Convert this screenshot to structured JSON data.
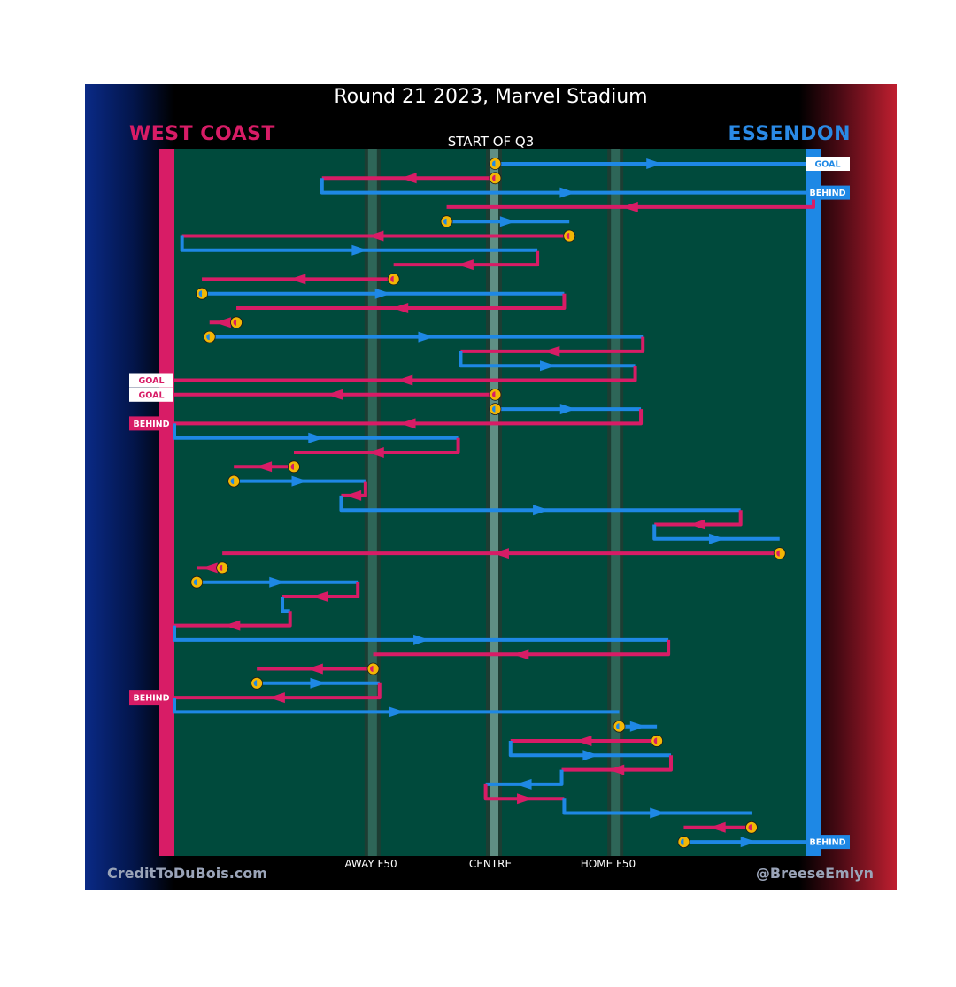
{
  "header": {
    "title": "Round 21 2023, Marvel Stadium",
    "team_left": "WEST COAST",
    "team_right": "ESSENDON",
    "subtitle": "START OF Q3"
  },
  "footer": {
    "credit_left": "CreditToDuBois.com",
    "credit_right": "@BreeseEmlyn"
  },
  "colors": {
    "west_coast": "#d81c66",
    "essendon": "#1e88e5",
    "field": "#004a3c",
    "turnover_marker": "#f2b705"
  },
  "chart_data": {
    "type": "line",
    "title": "Round 21 2023, Marvel Stadium",
    "subtitle": "START OF Q3",
    "description": "Ball movement chains in Q3; x = ground position from West Coast goal (0) to Essendon goal (100); rows are successive chain segments top to bottom",
    "x_axis": {
      "range": [
        0,
        100
      ],
      "ticks": [
        {
          "value": 31,
          "label": "AWAY F50"
        },
        {
          "value": 50,
          "label": "CENTRE"
        },
        {
          "value": 69,
          "label": "HOME F50"
        }
      ]
    },
    "teams": {
      "WC": "WEST COAST",
      "ESS": "ESSENDON"
    },
    "segments": [
      {
        "row": 0,
        "team": "ESS",
        "from": 50.2,
        "to": 100,
        "start_marker": true,
        "result": "GOAL"
      },
      {
        "row": 1,
        "team": "WC",
        "from": 50.2,
        "to": 23.1,
        "start_marker": true
      },
      {
        "row": 2,
        "team": "ESS",
        "from": 23.1,
        "to": 100,
        "result": "BEHIND"
      },
      {
        "row": 3,
        "team": "WC",
        "from": 100,
        "to": 42.6
      },
      {
        "row": 4,
        "team": "ESS",
        "from": 42.6,
        "to": 61.8,
        "start_marker": true
      },
      {
        "row": 5,
        "team": "WC",
        "from": 61.8,
        "to": 1.2,
        "start_marker": true
      },
      {
        "row": 6,
        "team": "ESS",
        "from": 1.2,
        "to": 56.8
      },
      {
        "row": 7,
        "team": "WC",
        "from": 56.8,
        "to": 34.3
      },
      {
        "row": 8,
        "team": "WC",
        "from": 34.3,
        "to": 4.3,
        "start_marker": true
      },
      {
        "row": 9,
        "team": "ESS",
        "from": 4.3,
        "to": 61.0,
        "start_marker": true
      },
      {
        "row": 10,
        "team": "WC",
        "from": 61.0,
        "to": 9.7
      },
      {
        "row": 11,
        "team": "WC",
        "from": 9.7,
        "to": 5.5,
        "start_marker": true
      },
      {
        "row": 12,
        "team": "ESS",
        "from": 5.5,
        "to": 73.3,
        "start_marker": true
      },
      {
        "row": 13,
        "team": "WC",
        "from": 73.3,
        "to": 44.8
      },
      {
        "row": 14,
        "team": "ESS",
        "from": 44.8,
        "to": 72.1
      },
      {
        "row": 15,
        "team": "WC",
        "from": 72.1,
        "to": 0,
        "result": "GOAL"
      },
      {
        "row": 16,
        "team": "WC",
        "from": 50.2,
        "to": 0,
        "start_marker": true,
        "result": "GOAL"
      },
      {
        "row": 17,
        "team": "ESS",
        "from": 50.2,
        "to": 73.0,
        "start_marker": true
      },
      {
        "row": 18,
        "team": "WC",
        "from": 73.0,
        "to": 0,
        "result": "BEHIND"
      },
      {
        "row": 19,
        "team": "ESS",
        "from": 0,
        "to": 44.4
      },
      {
        "row": 20,
        "team": "WC",
        "from": 44.4,
        "to": 18.7
      },
      {
        "row": 21,
        "team": "WC",
        "from": 18.7,
        "to": 9.3,
        "start_marker": true
      },
      {
        "row": 22,
        "team": "ESS",
        "from": 9.3,
        "to": 29.9,
        "start_marker": true
      },
      {
        "row": 23,
        "team": "WC",
        "from": 29.9,
        "to": 26.1
      },
      {
        "row": 24,
        "team": "ESS",
        "from": 26.1,
        "to": 88.6
      },
      {
        "row": 25,
        "team": "WC",
        "from": 88.6,
        "to": 75.1
      },
      {
        "row": 26,
        "team": "ESS",
        "from": 75.1,
        "to": 94.7
      },
      {
        "row": 27,
        "team": "WC",
        "from": 94.7,
        "to": 7.5,
        "start_marker": true
      },
      {
        "row": 28,
        "team": "WC",
        "from": 7.5,
        "to": 3.5,
        "start_marker": true
      },
      {
        "row": 29,
        "team": "ESS",
        "from": 3.5,
        "to": 28.7,
        "start_marker": true
      },
      {
        "row": 30,
        "team": "WC",
        "from": 28.7,
        "to": 16.9
      },
      {
        "row": 31,
        "team": "ESS",
        "from": 16.9,
        "to": 18.1
      },
      {
        "row": 32,
        "team": "WC",
        "from": 18.1,
        "to": 0
      },
      {
        "row": 33,
        "team": "ESS",
        "from": 0,
        "to": 77.3
      },
      {
        "row": 34,
        "team": "WC",
        "from": 77.3,
        "to": 31.1
      },
      {
        "row": 35,
        "team": "WC",
        "from": 31.1,
        "to": 12.9,
        "start_marker": true
      },
      {
        "row": 36,
        "team": "ESS",
        "from": 12.9,
        "to": 32.1,
        "start_marker": true
      },
      {
        "row": 37,
        "team": "WC",
        "from": 32.1,
        "to": 0,
        "result": "BEHIND"
      },
      {
        "row": 38,
        "team": "ESS",
        "from": 0,
        "to": 69.6
      },
      {
        "row": 39,
        "team": "ESS",
        "from": 69.6,
        "to": 75.5,
        "start_marker": true
      },
      {
        "row": 40,
        "team": "WC",
        "from": 75.5,
        "to": 52.6,
        "start_marker": true
      },
      {
        "row": 41,
        "team": "ESS",
        "from": 52.6,
        "to": 77.7
      },
      {
        "row": 42,
        "team": "WC",
        "from": 77.7,
        "to": 60.6
      },
      {
        "row": 43,
        "team": "ESS",
        "from": 60.6,
        "to": 48.7
      },
      {
        "row": 44,
        "team": "WC",
        "from": 48.7,
        "to": 61.0
      },
      {
        "row": 45,
        "team": "ESS",
        "from": 61.0,
        "to": 90.3
      },
      {
        "row": 46,
        "team": "WC",
        "from": 90.3,
        "to": 79.7,
        "start_marker": true
      },
      {
        "row": 47,
        "team": "ESS",
        "from": 79.7,
        "to": 100,
        "start_marker": true,
        "result": "BEHIND"
      }
    ]
  }
}
